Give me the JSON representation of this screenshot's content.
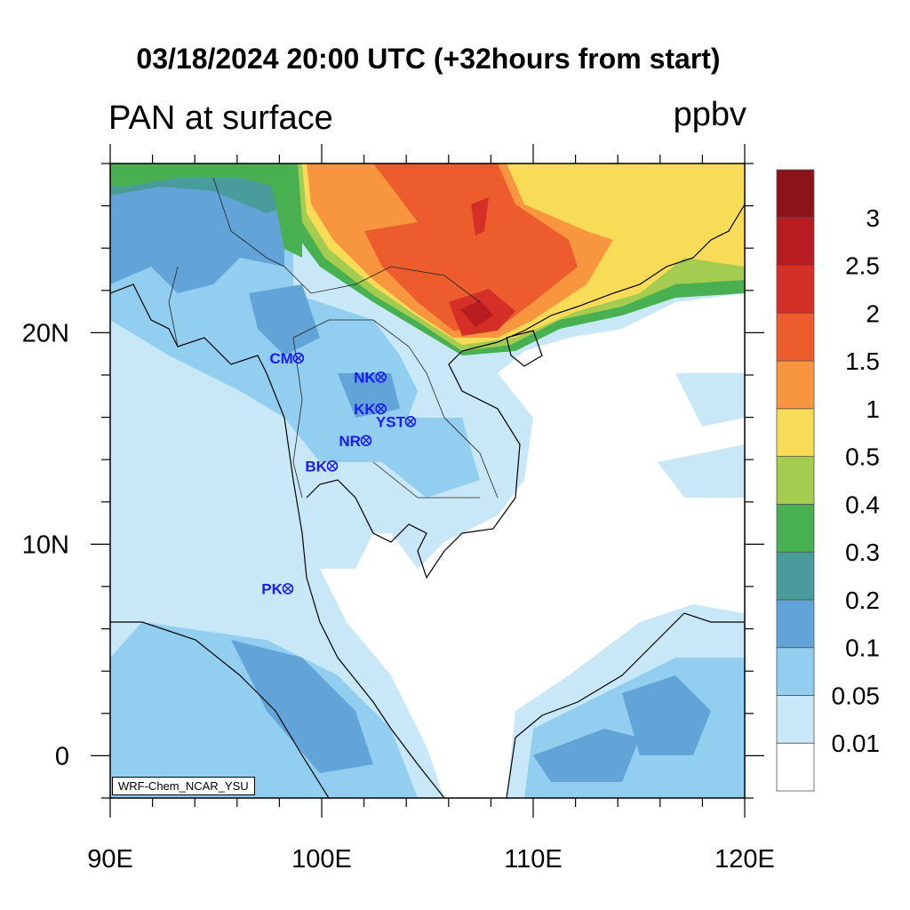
{
  "title": "03/18/2024 20:00 UTC (+32hours from start)",
  "variable": "PAN at surface",
  "units": "ppbv",
  "credit": "WRF-Chem_NCAR_YSU",
  "map": {
    "lon_range": [
      90,
      120
    ],
    "lat_range": [
      -2,
      28
    ],
    "x_ticks": [
      {
        "value": 90,
        "label": "90E"
      },
      {
        "value": 100,
        "label": "100E"
      },
      {
        "value": 110,
        "label": "110E"
      },
      {
        "value": 120,
        "label": "120E"
      }
    ],
    "y_ticks": [
      {
        "value": 0,
        "label": "0"
      },
      {
        "value": 10,
        "label": "10N"
      },
      {
        "value": 20,
        "label": "20N"
      }
    ]
  },
  "colorbar": {
    "levels": [
      "0.01",
      "0.05",
      "0.1",
      "0.2",
      "0.3",
      "0.4",
      "0.5",
      "1",
      "1.5",
      "2",
      "2.5",
      "3"
    ],
    "colors": [
      "#ffffff",
      "#c8e8f8",
      "#92cef0",
      "#62a4d8",
      "#4a9c9c",
      "#48b050",
      "#a4cc50",
      "#f8dc58",
      "#f89640",
      "#ec5c2c",
      "#d43028",
      "#b81c20",
      "#8c1418"
    ]
  },
  "stations": [
    {
      "name": "CM",
      "lon": 98.9,
      "lat": 18.8
    },
    {
      "name": "NK",
      "lon": 102.8,
      "lat": 17.9
    },
    {
      "name": "KK",
      "lon": 102.8,
      "lat": 16.4
    },
    {
      "name": "YST",
      "lon": 104.2,
      "lat": 15.8
    },
    {
      "name": "NR",
      "lon": 102.1,
      "lat": 14.9
    },
    {
      "name": "BK",
      "lon": 100.5,
      "lat": 13.7
    },
    {
      "name": "PK",
      "lon": 98.4,
      "lat": 7.9
    }
  ]
}
